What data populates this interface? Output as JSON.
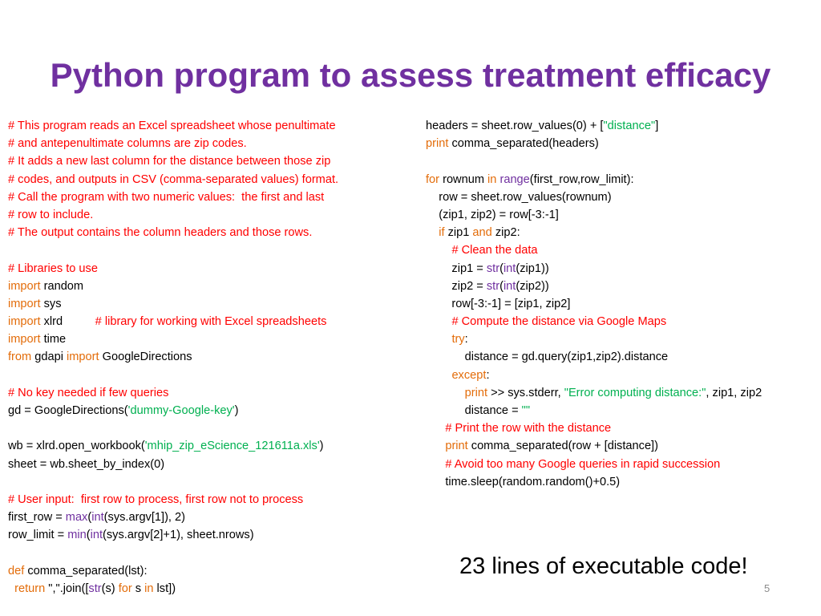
{
  "slide": {
    "title": "Python program to assess treatment efficacy",
    "callout": "23 lines of executable code!",
    "page_number": "5"
  },
  "colors": {
    "title": "#7030a0",
    "comment": "#ff0000",
    "keyword": "#e36c09",
    "builtin": "#7030a0",
    "string": "#00b050",
    "plain": "#000000"
  },
  "code_left": [
    [
      [
        "c",
        "# This program reads an Excel spreadsheet whose penultimate"
      ]
    ],
    [
      [
        "c",
        "# and antepenultimate columns are zip codes."
      ]
    ],
    [
      [
        "c",
        "# It adds a new last column for the distance between those zip"
      ]
    ],
    [
      [
        "c",
        "# codes, and outputs in CSV (comma-separated values) format."
      ]
    ],
    [
      [
        "c",
        "# Call the program with two numeric values:  the first and last"
      ]
    ],
    [
      [
        "c",
        "# row to include."
      ]
    ],
    [
      [
        "c",
        "# The output contains the column headers and those rows."
      ]
    ],
    [],
    [
      [
        "c",
        "# Libraries to use"
      ]
    ],
    [
      [
        "k",
        "import"
      ],
      [
        "p",
        " random"
      ]
    ],
    [
      [
        "k",
        "import"
      ],
      [
        "p",
        " sys"
      ]
    ],
    [
      [
        "k",
        "import"
      ],
      [
        "p",
        " xlrd          "
      ],
      [
        "c",
        "# library for working with Excel spreadsheets"
      ]
    ],
    [
      [
        "k",
        "import"
      ],
      [
        "p",
        " time"
      ]
    ],
    [
      [
        "k",
        "from"
      ],
      [
        "p",
        " gdapi "
      ],
      [
        "k",
        "import"
      ],
      [
        "p",
        " GoogleDirections"
      ]
    ],
    [],
    [
      [
        "c",
        "# No key needed if few queries"
      ]
    ],
    [
      [
        "p",
        "gd = GoogleDirections("
      ],
      [
        "s",
        "'dummy-Google-key'"
      ],
      [
        "p",
        ")"
      ]
    ],
    [],
    [
      [
        "p",
        "wb = xlrd.open_workbook("
      ],
      [
        "s",
        "'mhip_zip_eScience_121611a.xls'"
      ],
      [
        "p",
        ")"
      ]
    ],
    [
      [
        "p",
        "sheet = wb.sheet_by_index(0)"
      ]
    ],
    [],
    [
      [
        "c",
        "# User input:  first row to process, first row not to process"
      ]
    ],
    [
      [
        "p",
        "first_row = "
      ],
      [
        "b",
        "max"
      ],
      [
        "p",
        "("
      ],
      [
        "b",
        "int"
      ],
      [
        "p",
        "(sys.argv[1]), 2)"
      ]
    ],
    [
      [
        "p",
        "row_limit = "
      ],
      [
        "b",
        "min"
      ],
      [
        "p",
        "("
      ],
      [
        "b",
        "int"
      ],
      [
        "p",
        "(sys.argv[2]+1), sheet.nrows)"
      ]
    ],
    [],
    [
      [
        "k",
        "def"
      ],
      [
        "p",
        " comma_separated(lst):"
      ]
    ],
    [
      [
        "p",
        "  "
      ],
      [
        "k",
        "return"
      ],
      [
        "p",
        " \",\".join(["
      ],
      [
        "b",
        "str"
      ],
      [
        "p",
        "(s) "
      ],
      [
        "k",
        "for"
      ],
      [
        "p",
        " s "
      ],
      [
        "k",
        "in"
      ],
      [
        "p",
        " lst])"
      ]
    ]
  ],
  "code_right": [
    [
      [
        "p",
        "headers = sheet.row_values(0) + ["
      ],
      [
        "s",
        "\"distance\""
      ],
      [
        "p",
        "]"
      ]
    ],
    [
      [
        "k",
        "print"
      ],
      [
        "p",
        " comma_separated(headers)"
      ]
    ],
    [],
    [
      [
        "k",
        "for"
      ],
      [
        "p",
        " rownum "
      ],
      [
        "k",
        "in"
      ],
      [
        "p",
        " "
      ],
      [
        "b",
        "range"
      ],
      [
        "p",
        "(first_row,row_limit):"
      ]
    ],
    [
      [
        "p",
        "    row = sheet.row_values(rownum)"
      ]
    ],
    [
      [
        "p",
        "    (zip1, zip2) = row[-3:-1]"
      ]
    ],
    [
      [
        "p",
        "    "
      ],
      [
        "k",
        "if"
      ],
      [
        "p",
        " zip1 "
      ],
      [
        "k",
        "and"
      ],
      [
        "p",
        " zip2:"
      ]
    ],
    [
      [
        "p",
        "        "
      ],
      [
        "c",
        "# Clean the data"
      ]
    ],
    [
      [
        "p",
        "        zip1 = "
      ],
      [
        "b",
        "str"
      ],
      [
        "p",
        "("
      ],
      [
        "b",
        "int"
      ],
      [
        "p",
        "(zip1))"
      ]
    ],
    [
      [
        "p",
        "        zip2 = "
      ],
      [
        "b",
        "str"
      ],
      [
        "p",
        "("
      ],
      [
        "b",
        "int"
      ],
      [
        "p",
        "(zip2))"
      ]
    ],
    [
      [
        "p",
        "        row[-3:-1] = [zip1, zip2]"
      ]
    ],
    [
      [
        "p",
        "        "
      ],
      [
        "c",
        "# Compute the distance via Google Maps"
      ]
    ],
    [
      [
        "p",
        "        "
      ],
      [
        "k",
        "try"
      ],
      [
        "p",
        ":"
      ]
    ],
    [
      [
        "p",
        "            distance = gd.query(zip1,zip2).distance"
      ]
    ],
    [
      [
        "p",
        "        "
      ],
      [
        "k",
        "except"
      ],
      [
        "p",
        ":"
      ]
    ],
    [
      [
        "p",
        "            "
      ],
      [
        "k",
        "print"
      ],
      [
        "p",
        " >> sys.stderr, "
      ],
      [
        "s",
        "\"Error computing distance:\""
      ],
      [
        "p",
        ", zip1, zip2"
      ]
    ],
    [
      [
        "p",
        "            distance = "
      ],
      [
        "s",
        "\"\""
      ]
    ],
    [
      [
        "p",
        "      "
      ],
      [
        "c",
        "# Print the row with the distance"
      ]
    ],
    [
      [
        "p",
        "      "
      ],
      [
        "k",
        "print"
      ],
      [
        "p",
        " comma_separated(row + [distance])"
      ]
    ],
    [
      [
        "p",
        "      "
      ],
      [
        "c",
        "# Avoid too many Google queries in rapid succession"
      ]
    ],
    [
      [
        "p",
        "      time.sleep(random.random()+0.5)"
      ]
    ]
  ]
}
